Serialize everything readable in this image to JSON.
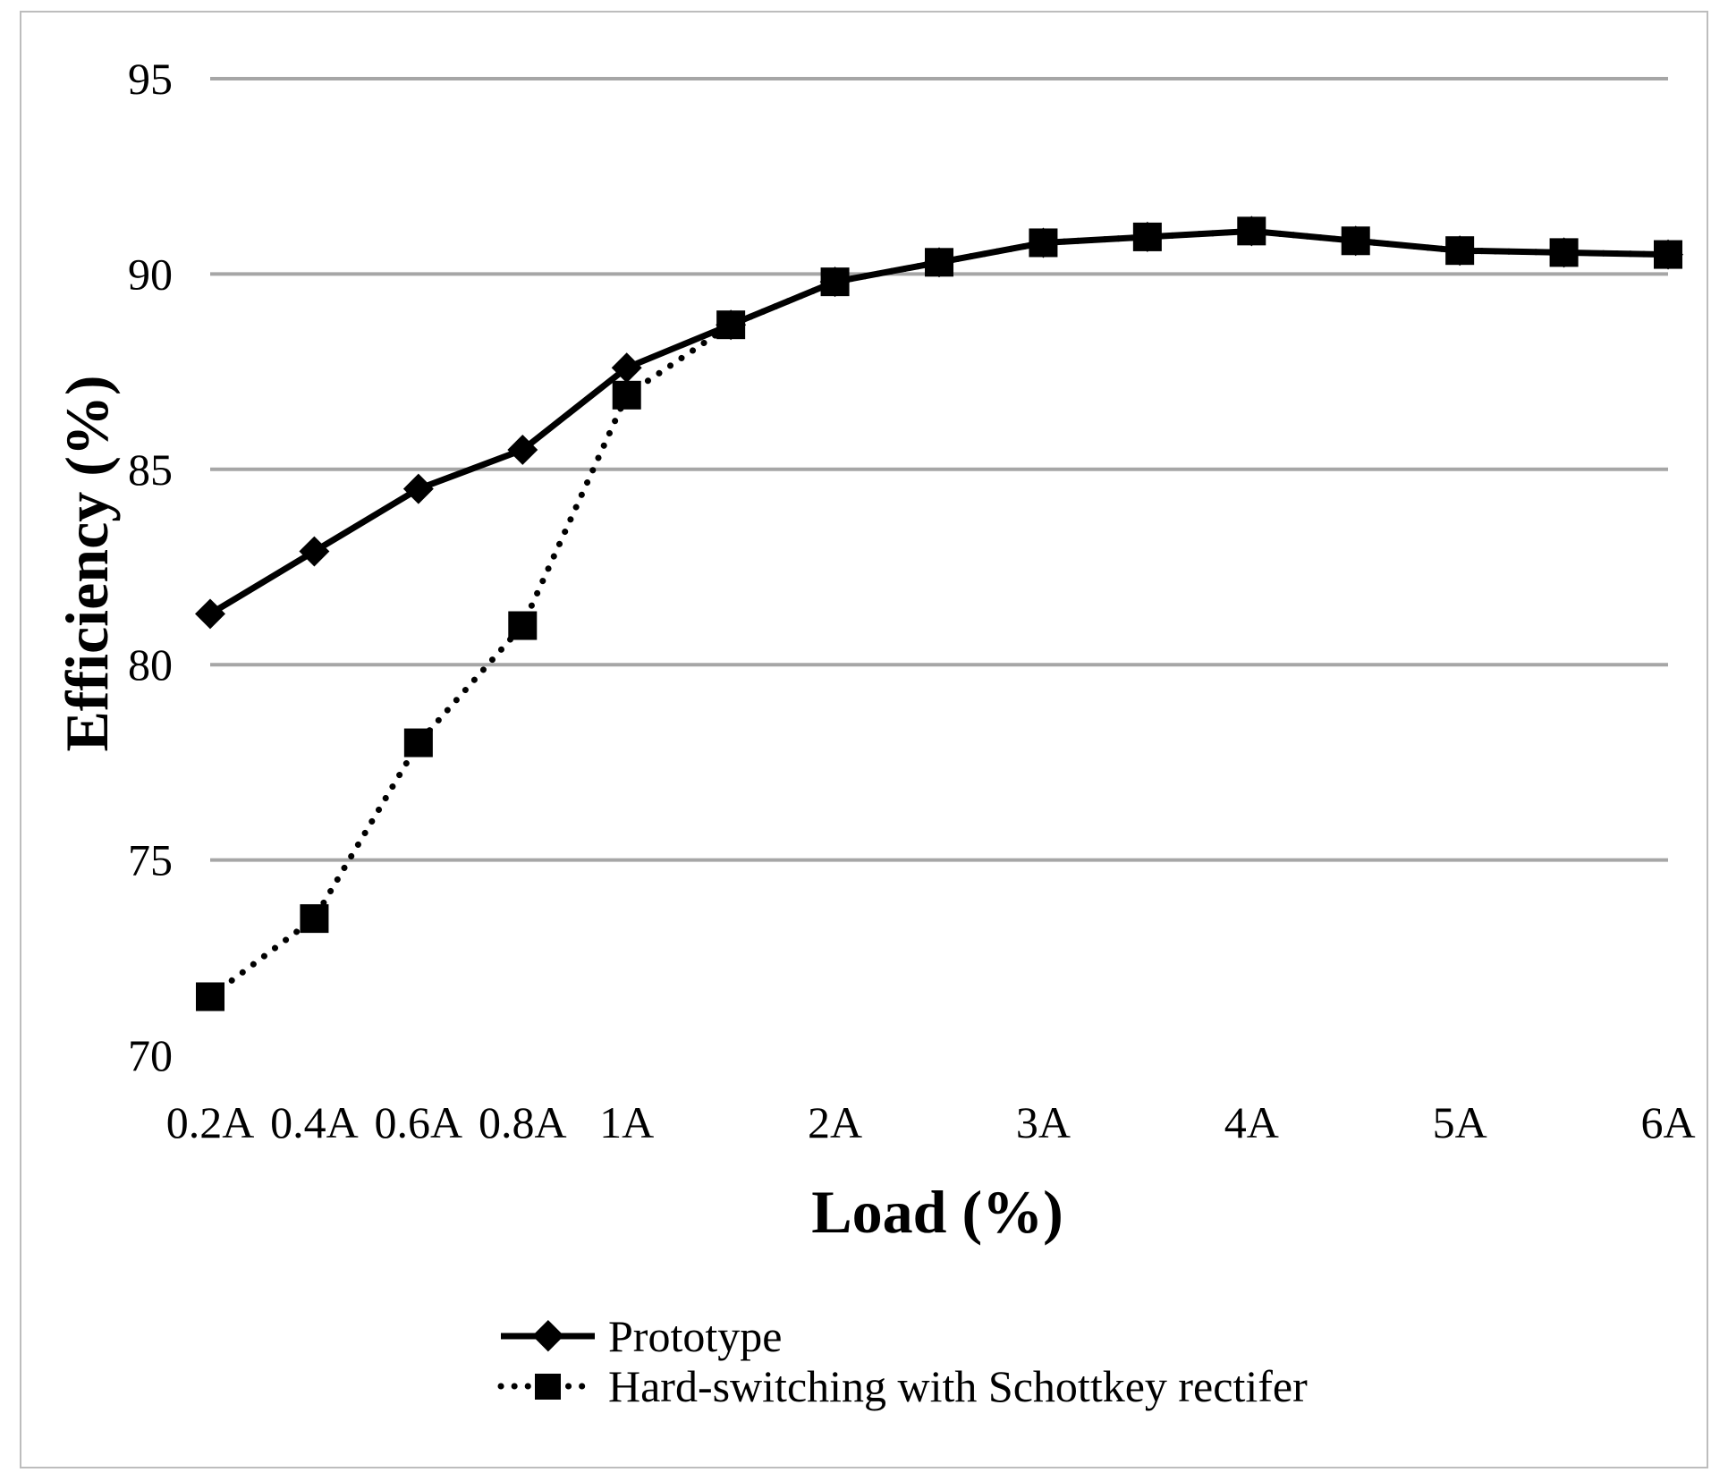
{
  "chart_data": {
    "type": "line",
    "title": "",
    "xlabel": "Load (%)",
    "ylabel": "Efficiency (%)",
    "ylim": [
      70,
      95
    ],
    "yticks": [
      70,
      75,
      80,
      85,
      90,
      95
    ],
    "ytick_labels": [
      "70",
      "75",
      "80",
      "85",
      "90",
      "95"
    ],
    "grid": true,
    "legend_position": "bottom",
    "x_labels": [
      "0.2A",
      "0.4A",
      "0.6A",
      "0.8A",
      "1A",
      "2A",
      "3A",
      "4A",
      "5A",
      "6A"
    ],
    "x_label_index": [
      0,
      1,
      2,
      3,
      4,
      6,
      8,
      10,
      12,
      14
    ],
    "x": [
      0,
      1,
      2,
      3,
      4,
      5,
      6,
      7,
      8,
      9,
      10,
      11,
      12,
      13,
      14
    ],
    "series": [
      {
        "name": "Prototype",
        "marker": "diamond",
        "line_style": "solid",
        "values": [
          81.3,
          82.9,
          84.5,
          85.5,
          87.6,
          88.7,
          89.8,
          90.3,
          90.8,
          90.95,
          91.1,
          90.85,
          90.6,
          90.55,
          90.5
        ]
      },
      {
        "name": "Hard-switching with Schottkey rectifer",
        "marker": "square",
        "line_style": "dotted",
        "values": [
          71.5,
          73.5,
          78.0,
          81.0,
          86.9,
          88.7,
          89.8,
          90.3,
          90.8,
          90.95,
          91.1,
          90.85,
          90.6,
          90.55,
          90.5
        ]
      }
    ]
  }
}
